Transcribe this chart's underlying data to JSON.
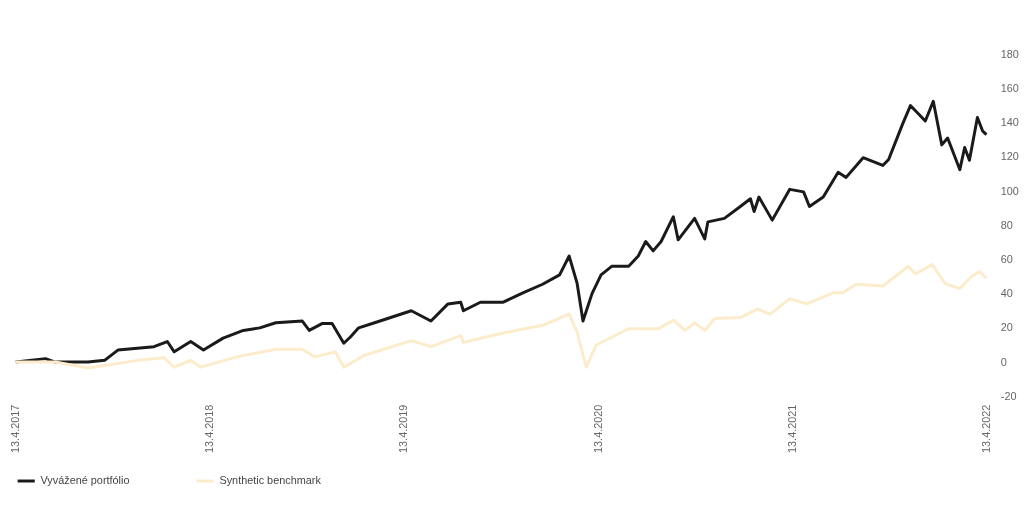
{
  "chart_data": {
    "type": "line",
    "series": [
      {
        "name": "Vyvážené portfólio",
        "color": "#1a1a1a",
        "x": [
          "2017-04-13",
          "2017-06-08",
          "2017-06-26",
          "2017-07-09",
          "2017-08-27",
          "2017-09-27",
          "2017-10-22",
          "2017-12-29",
          "2018-01-23",
          "2018-02-05",
          "2018-03-08",
          "2018-04-01",
          "2018-05-08",
          "2018-06-15",
          "2018-07-16",
          "2018-08-15",
          "2018-10-04",
          "2018-10-17",
          "2018-11-10",
          "2018-11-29",
          "2018-12-21",
          "2019-01-02",
          "2019-01-18",
          "2019-02-17",
          "2019-04-27",
          "2019-06-03",
          "2019-07-05",
          "2019-07-29",
          "2019-08-03",
          "2019-09-04",
          "2019-10-17",
          "2019-11-23",
          "2019-12-30",
          "2020-01-31",
          "2020-02-18",
          "2020-03-04",
          "2020-03-15",
          "2020-04-01",
          "2020-04-18",
          "2020-05-08",
          "2020-06-09",
          "2020-06-27",
          "2020-07-11",
          "2020-07-25",
          "2020-08-09",
          "2020-09-01",
          "2020-09-10",
          "2020-10-11",
          "2020-10-30",
          "2020-11-05",
          "2020-12-06",
          "2021-01-05",
          "2021-01-24",
          "2021-01-31",
          "2021-02-09",
          "2021-03-06",
          "2021-04-08",
          "2021-05-04",
          "2021-05-15",
          "2021-06-10",
          "2021-07-08",
          "2021-07-23",
          "2021-08-24",
          "2021-09-30",
          "2021-10-11",
          "2021-11-06",
          "2021-11-21",
          "2021-12-19",
          "2022-01-03",
          "2022-01-19",
          "2022-01-30",
          "2022-02-22",
          "2022-03-03",
          "2022-03-12",
          "2022-03-27",
          "2022-04-06",
          "2022-04-13"
        ],
        "values": [
          0,
          2,
          0,
          0,
          0,
          1,
          7,
          9,
          12,
          6,
          12,
          7,
          14,
          18.5,
          20,
          23,
          24,
          18.5,
          22.5,
          22.5,
          11,
          14.5,
          20,
          23,
          30,
          24,
          34,
          35,
          30,
          35,
          35,
          40.5,
          45.5,
          51,
          62,
          46,
          24,
          40,
          51,
          56,
          56,
          62,
          70.5,
          65,
          70.5,
          85,
          71.5,
          84,
          72,
          82,
          84,
          91,
          95.5,
          88,
          96.5,
          83,
          101,
          99.5,
          91,
          96.5,
          111,
          108,
          119.5,
          115,
          118.5,
          139,
          150,
          141,
          152.5,
          127,
          131,
          112.5,
          125.5,
          118,
          143,
          135,
          133
        ]
      },
      {
        "name": "Synthetic benchmark",
        "color": "#fdeccb",
        "x": [
          "2017-04-13",
          "2017-06-26",
          "2017-08-27",
          "2017-09-27",
          "2017-11-28",
          "2018-01-17",
          "2018-02-05",
          "2018-03-08",
          "2018-03-27",
          "2018-06-02",
          "2018-08-15",
          "2018-10-04",
          "2018-10-28",
          "2018-12-05",
          "2018-12-21",
          "2019-01-29",
          "2019-04-27",
          "2019-06-03",
          "2019-07-29",
          "2019-08-03",
          "2019-10-17",
          "2019-12-30",
          "2020-02-18",
          "2020-03-04",
          "2020-03-21",
          "2020-04-09",
          "2020-05-08",
          "2020-06-09",
          "2020-08-04",
          "2020-09-01",
          "2020-09-23",
          "2020-10-11",
          "2020-10-30",
          "2020-11-18",
          "2021-01-05",
          "2021-02-06",
          "2021-03-02",
          "2021-04-08",
          "2021-05-10",
          "2021-06-29",
          "2021-07-17",
          "2021-08-11",
          "2021-09-30",
          "2021-11-17",
          "2021-11-30",
          "2022-01-01",
          "2022-01-25",
          "2022-02-22",
          "2022-03-16",
          "2022-03-31",
          "2022-04-13"
        ],
        "values": [
          0,
          0,
          -3.5,
          -2,
          1,
          2.5,
          -3,
          1,
          -3,
          3,
          7.5,
          7.5,
          3,
          6,
          -3,
          4,
          12.5,
          9,
          15.5,
          11.5,
          17,
          21.5,
          28,
          17.5,
          -3,
          10,
          14.5,
          19.5,
          19.5,
          24.5,
          18.5,
          23,
          18.5,
          25.5,
          26,
          31,
          28,
          37,
          34,
          40.5,
          40.5,
          45.5,
          44.5,
          56,
          51.5,
          57,
          46,
          43,
          50,
          53,
          49
        ]
      }
    ],
    "xlim": [
      "2017-04-13",
      "2022-04-13"
    ],
    "xticks": [
      {
        "value": "2017-04-13",
        "label": "13.4.2017"
      },
      {
        "value": "2018-04-13",
        "label": "13.4.2018"
      },
      {
        "value": "2019-04-13",
        "label": "13.4.2019"
      },
      {
        "value": "2020-04-13",
        "label": "13.4.2020"
      },
      {
        "value": "2021-04-13",
        "label": "13.4.2021"
      },
      {
        "value": "2022-04-13",
        "label": "13.4.2022"
      }
    ],
    "ylim": [
      -20,
      180
    ],
    "yticks": [
      -20,
      0,
      20,
      40,
      60,
      80,
      100,
      120,
      140,
      160,
      180
    ],
    "grid": false,
    "legend": "bottom",
    "marker": "none",
    "line_style": "solid"
  }
}
